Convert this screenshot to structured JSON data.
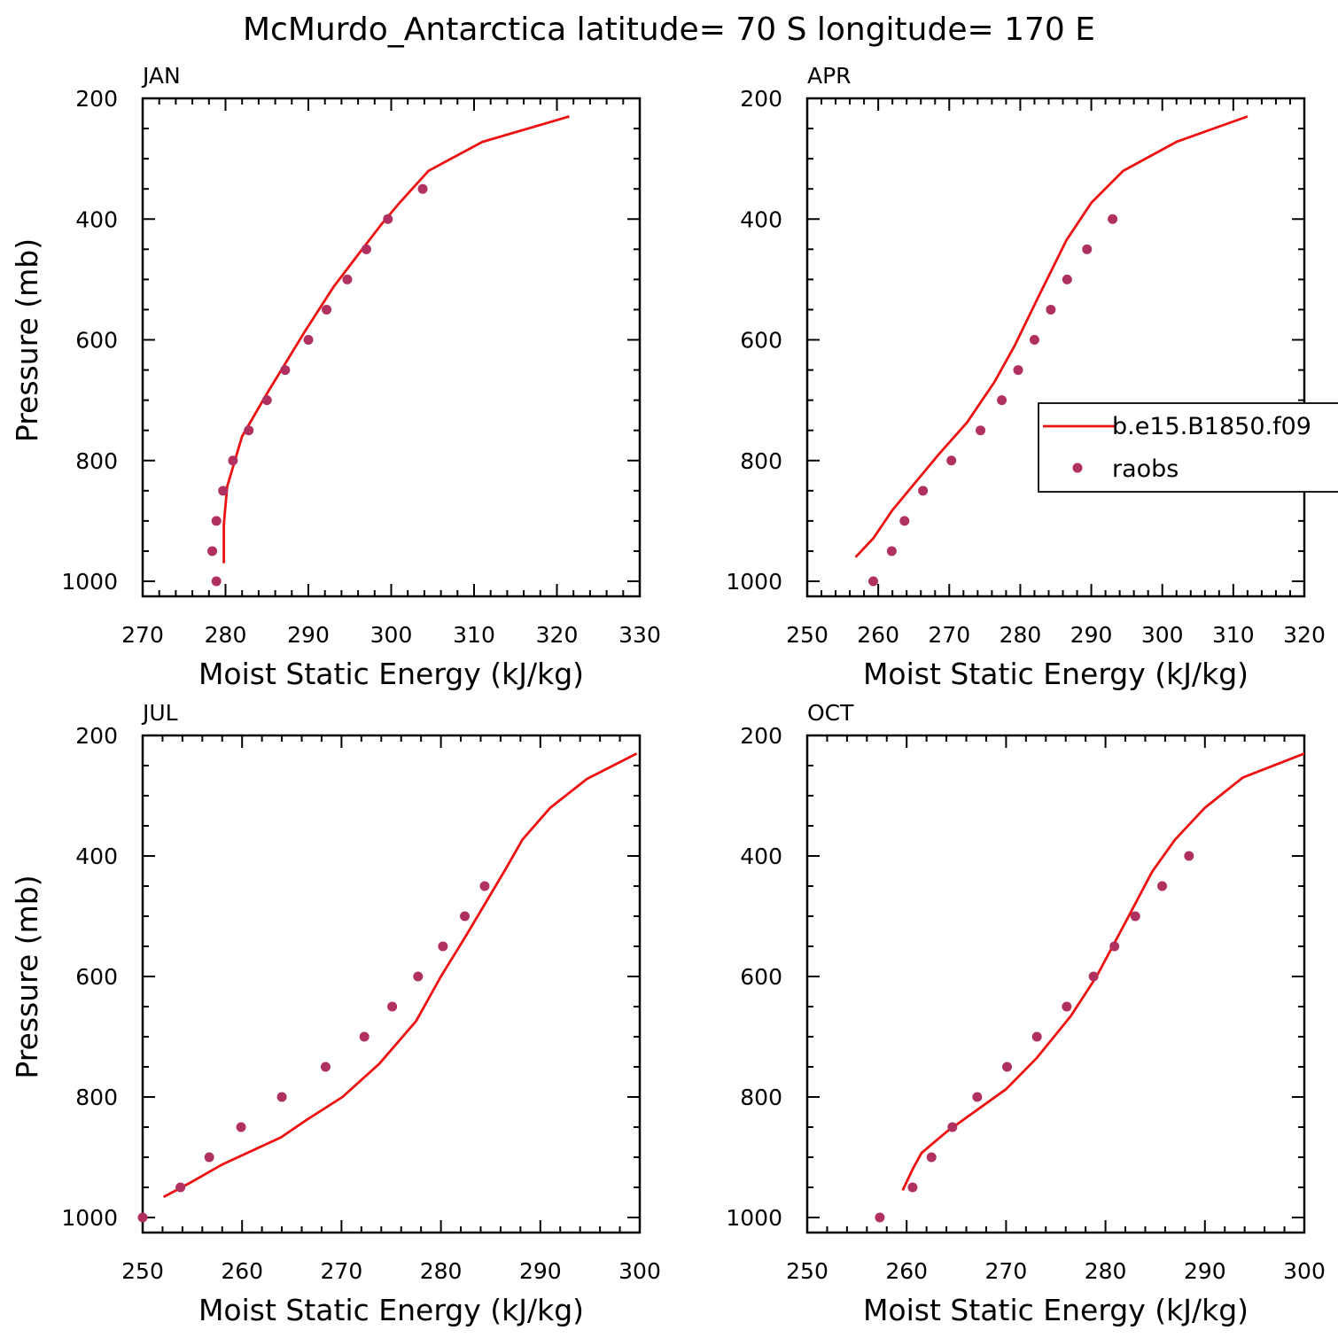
{
  "chart_data": {
    "type": "line",
    "title": "McMurdo_Antarctica  latitude= 70 S longitude= 170 E",
    "xlabel": "Moist Static Energy (kJ/kg)",
    "ylabel": "Pressure (mb)",
    "legend": {
      "position": "right",
      "entries": [
        "b.e15.B1850.f09",
        "raobs"
      ]
    },
    "colors": {
      "model": "#ee1111",
      "obs": "#b03060"
    },
    "panels": [
      {
        "label": "JAN",
        "xlim": [
          270,
          330
        ],
        "xticks": [
          "270",
          "280",
          "290",
          "300",
          "310",
          "320",
          "330"
        ],
        "ylim": [
          1000,
          200
        ],
        "yticks": [
          "200",
          "400",
          "600",
          "800",
          "1000"
        ],
        "model": [
          [
            321.5,
            230
          ],
          [
            311,
            272
          ],
          [
            304.5,
            320
          ],
          [
            301,
            373
          ],
          [
            298.8,
            409
          ],
          [
            296,
            459
          ],
          [
            293,
            513
          ],
          [
            289.5,
            588
          ],
          [
            285,
            689
          ],
          [
            282,
            760
          ],
          [
            280.2,
            843
          ],
          [
            279.8,
            906
          ],
          [
            279.8,
            970
          ]
        ],
        "obs": [
          [
            303.8,
            350
          ],
          [
            299.6,
            400
          ],
          [
            297,
            450
          ],
          [
            294.7,
            500
          ],
          [
            292.2,
            550
          ],
          [
            290,
            600
          ],
          [
            287.2,
            650
          ],
          [
            285,
            700
          ],
          [
            282.8,
            750
          ],
          [
            280.9,
            800
          ],
          [
            279.7,
            850
          ],
          [
            278.9,
            900
          ],
          [
            278.4,
            950
          ],
          [
            278.9,
            1000
          ]
        ]
      },
      {
        "label": "APR",
        "xlim": [
          250,
          320
        ],
        "xticks": [
          "250",
          "260",
          "270",
          "280",
          "290",
          "300",
          "310",
          "320"
        ],
        "ylim": [
          1000,
          200
        ],
        "yticks": [
          "200",
          "400",
          "600",
          "800",
          "1000"
        ],
        "model": [
          [
            312,
            230
          ],
          [
            302,
            272
          ],
          [
            294.5,
            320
          ],
          [
            290,
            373
          ],
          [
            286.5,
            435
          ],
          [
            282.5,
            530
          ],
          [
            279.2,
            610
          ],
          [
            276.3,
            671
          ],
          [
            272.5,
            737
          ],
          [
            268.5,
            790
          ],
          [
            262,
            882
          ],
          [
            259.3,
            929
          ],
          [
            256.8,
            960
          ]
        ],
        "obs": [
          [
            293,
            400
          ],
          [
            289.4,
            450
          ],
          [
            286.6,
            500
          ],
          [
            284.3,
            550
          ],
          [
            282,
            600
          ],
          [
            279.7,
            650
          ],
          [
            277.4,
            700
          ],
          [
            274.4,
            750
          ],
          [
            270.3,
            800
          ],
          [
            266.3,
            850
          ],
          [
            263.7,
            900
          ],
          [
            261.9,
            950
          ],
          [
            259.3,
            1000
          ]
        ]
      },
      {
        "label": "JUL",
        "xlim": [
          250,
          300
        ],
        "xticks": [
          "250",
          "260",
          "270",
          "280",
          "290",
          "300"
        ],
        "ylim": [
          1000,
          200
        ],
        "yticks": [
          "200",
          "400",
          "600",
          "800",
          "1000"
        ],
        "model": [
          [
            299.7,
            230
          ],
          [
            294.7,
            272
          ],
          [
            291,
            320
          ],
          [
            288.2,
            373
          ],
          [
            286.5,
            422
          ],
          [
            282.5,
            533
          ],
          [
            280,
            600
          ],
          [
            277.5,
            674
          ],
          [
            273.8,
            745
          ],
          [
            270.1,
            800
          ],
          [
            266.5,
            838
          ],
          [
            263.9,
            867
          ],
          [
            258,
            912
          ],
          [
            254.8,
            942
          ],
          [
            252.1,
            966
          ]
        ],
        "obs": [
          [
            284.4,
            450
          ],
          [
            282.4,
            500
          ],
          [
            280.2,
            550
          ],
          [
            277.7,
            600
          ],
          [
            275.1,
            650
          ],
          [
            272.3,
            700
          ],
          [
            268.4,
            750
          ],
          [
            264,
            800
          ],
          [
            259.9,
            850
          ],
          [
            256.7,
            900
          ],
          [
            253.8,
            950
          ],
          [
            250,
            1000
          ]
        ]
      },
      {
        "label": "OCT",
        "xlim": [
          250,
          300
        ],
        "xticks": [
          "250",
          "260",
          "270",
          "280",
          "290",
          "300"
        ],
        "ylim": [
          1000,
          200
        ],
        "yticks": [
          "200",
          "400",
          "600",
          "800",
          "1000"
        ],
        "model": [
          [
            300,
            230
          ],
          [
            293.8,
            270
          ],
          [
            290,
            320
          ],
          [
            287,
            373
          ],
          [
            284.7,
            426
          ],
          [
            282.1,
            507
          ],
          [
            279.1,
            600
          ],
          [
            276.5,
            666
          ],
          [
            273.1,
            735
          ],
          [
            270,
            787
          ],
          [
            264,
            858
          ],
          [
            261.5,
            893
          ],
          [
            260.6,
            920
          ],
          [
            259.6,
            955
          ]
        ],
        "obs": [
          [
            288.4,
            400
          ],
          [
            285.7,
            450
          ],
          [
            283,
            500
          ],
          [
            280.9,
            550
          ],
          [
            278.8,
            600
          ],
          [
            276.1,
            650
          ],
          [
            273.1,
            700
          ],
          [
            270.1,
            750
          ],
          [
            267.1,
            800
          ],
          [
            264.6,
            850
          ],
          [
            262.5,
            900
          ],
          [
            260.6,
            950
          ],
          [
            257.3,
            1000
          ]
        ]
      }
    ]
  }
}
